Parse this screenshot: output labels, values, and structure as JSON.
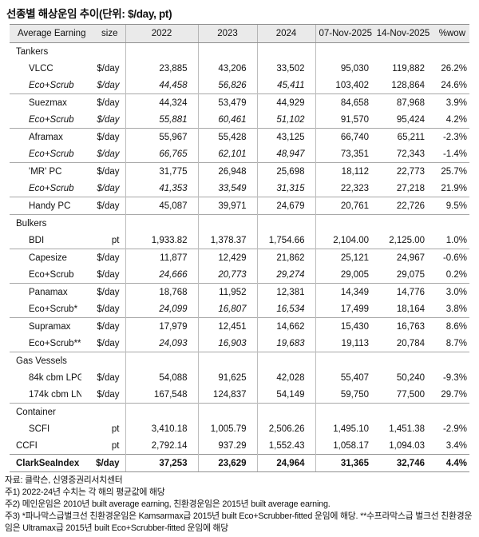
{
  "title": "선종별 해상운임 추이(단위: $/day, pt)",
  "table": {
    "columns": [
      "Average Earning",
      "size",
      "2022",
      "2023",
      "2024",
      "07-Nov-2025",
      "14-Nov-2025",
      "%wow"
    ],
    "rows": [
      {
        "type": "section",
        "label": "Tankers"
      },
      {
        "type": "data",
        "label": "VLCC",
        "unit": "$/day",
        "indent": 1,
        "values": [
          "23,885",
          "43,206",
          "33,502",
          "95,030",
          "119,882",
          "26.2%"
        ]
      },
      {
        "type": "data",
        "label": "Eco+Scrub",
        "unit": "$/day",
        "indent": 1,
        "italic_label": true,
        "italic_years": true,
        "values": [
          "44,458",
          "56,826",
          "45,411",
          "103,402",
          "128,864",
          "24.6%"
        ]
      },
      {
        "type": "data",
        "label": "Suezmax",
        "unit": "$/day",
        "indent": 1,
        "line": true,
        "values": [
          "44,324",
          "53,479",
          "44,929",
          "84,658",
          "87,968",
          "3.9%"
        ]
      },
      {
        "type": "data",
        "label": "Eco+Scrub",
        "unit": "$/day",
        "indent": 1,
        "italic_label": true,
        "italic_years": true,
        "values": [
          "55,881",
          "60,461",
          "51,102",
          "91,570",
          "95,424",
          "4.2%"
        ]
      },
      {
        "type": "data",
        "label": "Aframax",
        "unit": "$/day",
        "indent": 1,
        "line": true,
        "values": [
          "55,967",
          "55,428",
          "43,125",
          "66,740",
          "65,211",
          "-2.3%"
        ]
      },
      {
        "type": "data",
        "label": "Eco+Scrub",
        "unit": "$/day",
        "indent": 1,
        "italic_label": true,
        "italic_years": true,
        "values": [
          "66,765",
          "62,101",
          "48,947",
          "73,351",
          "72,343",
          "-1.4%"
        ]
      },
      {
        "type": "data",
        "label": "'MR' PC",
        "unit": "$/day",
        "indent": 1,
        "line": true,
        "values": [
          "31,775",
          "26,948",
          "25,698",
          "18,112",
          "22,773",
          "25.7%"
        ]
      },
      {
        "type": "data",
        "label": "Eco+Scrub",
        "unit": "$/day",
        "indent": 1,
        "italic_label": true,
        "italic_years": true,
        "values": [
          "41,353",
          "33,549",
          "31,315",
          "22,323",
          "27,218",
          "21.9%"
        ]
      },
      {
        "type": "data",
        "label": "Handy PC",
        "unit": "$/day",
        "indent": 1,
        "line": true,
        "values": [
          "45,087",
          "39,971",
          "24,679",
          "20,761",
          "22,726",
          "9.5%"
        ]
      },
      {
        "type": "section",
        "label": "Bulkers",
        "line": true
      },
      {
        "type": "data",
        "label": "BDI",
        "unit": "pt",
        "indent": 1,
        "values": [
          "1,933.82",
          "1,378.37",
          "1,754.66",
          "2,104.00",
          "2,125.00",
          "1.0%"
        ]
      },
      {
        "type": "data",
        "label": "Capesize",
        "unit": "$/day",
        "indent": 1,
        "line": true,
        "values": [
          "11,877",
          "12,429",
          "21,862",
          "25,121",
          "24,967",
          "-0.6%"
        ]
      },
      {
        "type": "data",
        "label": "Eco+Scrub",
        "unit": "$/day",
        "indent": 1,
        "italic_years": true,
        "values": [
          "24,666",
          "20,773",
          "29,274",
          "29,005",
          "29,075",
          "0.2%"
        ]
      },
      {
        "type": "data",
        "label": "Panamax",
        "unit": "$/day",
        "indent": 1,
        "line": true,
        "values": [
          "18,768",
          "11,952",
          "12,381",
          "14,349",
          "14,776",
          "3.0%"
        ]
      },
      {
        "type": "data",
        "label": "Eco+Scrub*",
        "unit": "$/day",
        "indent": 1,
        "italic_years": true,
        "values": [
          "24,099",
          "16,807",
          "16,534",
          "17,499",
          "18,164",
          "3.8%"
        ]
      },
      {
        "type": "data",
        "label": "Supramax",
        "unit": "$/day",
        "indent": 1,
        "line": true,
        "values": [
          "17,979",
          "12,451",
          "14,662",
          "15,430",
          "16,763",
          "8.6%"
        ]
      },
      {
        "type": "data",
        "label": "Eco+Scrub**",
        "unit": "$/day",
        "indent": 1,
        "italic_years": true,
        "values": [
          "24,093",
          "16,903",
          "19,683",
          "19,113",
          "20,784",
          "8.7%"
        ]
      },
      {
        "type": "section",
        "label": "Gas Vessels",
        "line": true
      },
      {
        "type": "data",
        "label": "84k cbm LPG",
        "unit": "$/day",
        "indent": 1,
        "values": [
          "54,088",
          "91,625",
          "42,028",
          "55,407",
          "50,240",
          "-9.3%"
        ]
      },
      {
        "type": "data",
        "label": "174k cbm LNG",
        "unit": "$/day",
        "indent": 1,
        "values": [
          "167,548",
          "124,837",
          "54,149",
          "59,750",
          "77,500",
          "29.7%"
        ]
      },
      {
        "type": "section",
        "label": "Container",
        "line": true
      },
      {
        "type": "data",
        "label": "SCFI",
        "unit": "pt",
        "indent": 1,
        "values": [
          "3,410.18",
          "1,005.79",
          "2,506.26",
          "1,495.10",
          "1,451.38",
          "-2.9%"
        ]
      },
      {
        "type": "data",
        "label": "CCFI",
        "unit": "pt",
        "indent": 0,
        "values": [
          "2,792.14",
          "937.29",
          "1,552.43",
          "1,058.17",
          "1,094.03",
          "3.4%"
        ]
      },
      {
        "type": "total",
        "label": "ClarkSeaIndex",
        "unit": "$/day",
        "indent": 0,
        "line": true,
        "values": [
          "37,253",
          "23,629",
          "24,964",
          "31,365",
          "32,746",
          "4.4%"
        ]
      }
    ]
  },
  "footnotes": [
    "자료: 클락슨, 신영증권리서치센터",
    "주1) 2022-24년 수치는 각 해의 평균값에 해당",
    "주2) 메인운임은 2010년 built average earning, 친환경운임은 2015년 built average earning.",
    "주3) *파나막스급벌크선 친환경운임은 Kamsarmax급 2015년 built Eco+Scrubber-fitted 운임에 해당. **수프라막스급 벌크선 친환경운임은 Ultramax급 2015년 built Eco+Scrubber-fitted 운임에 해당"
  ]
}
